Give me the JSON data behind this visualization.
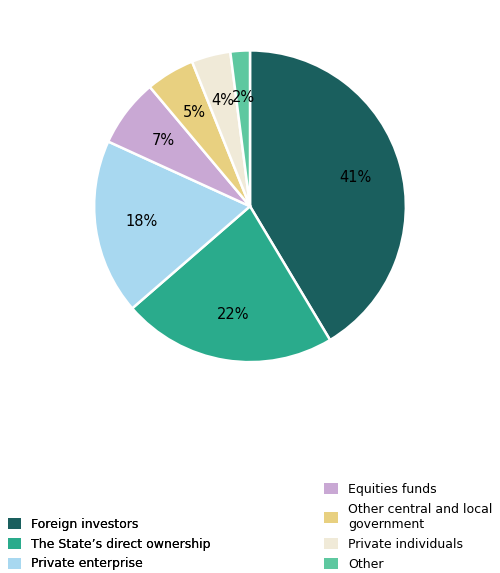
{
  "slices": [
    {
      "label": "Foreign investors",
      "value": 41,
      "color": "#1a5f5e"
    },
    {
      "label": "The State’s direct ownership",
      "value": 22,
      "color": "#2aab8c"
    },
    {
      "label": "Private enterprise",
      "value": 18,
      "color": "#a8d8f0"
    },
    {
      "label": "Equities funds",
      "value": 7,
      "color": "#c9a8d4"
    },
    {
      "label": "Other central and local government",
      "value": 5,
      "color": "#e8d080"
    },
    {
      "label": "Private individuals",
      "value": 4,
      "color": "#f0ead8"
    },
    {
      "label": "Other",
      "value": 2,
      "color": "#5ec8a0"
    }
  ],
  "pct_labels": [
    "41%",
    "22%",
    "18%",
    "7%",
    "5%",
    "4%",
    "2%"
  ],
  "background_color": "#ffffff",
  "legend_fontsize": 9.0
}
